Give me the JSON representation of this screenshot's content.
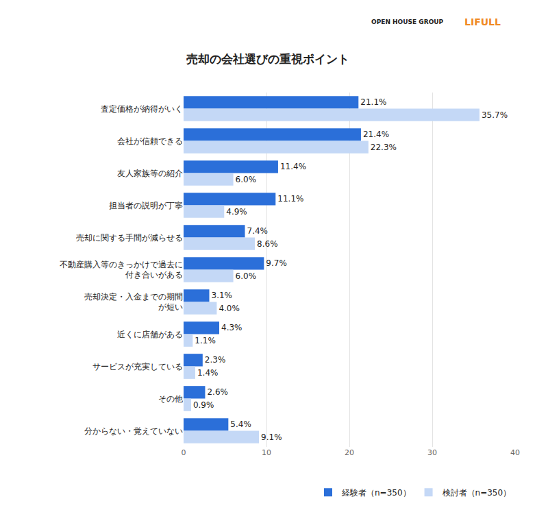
{
  "header": {
    "logos": [
      "OPEN HOUSE GROUP",
      "LIFULL"
    ]
  },
  "chart_data": {
    "type": "bar",
    "orientation": "horizontal",
    "title": "売却の会社選びの重視ポイント",
    "categories": [
      "査定価格が納得がいく",
      "会社が信頼できる",
      "友人家族等の紹介",
      "担当者の説明が丁寧",
      "売却に関する手間が減らせる",
      "不動産購入等のきっかけで過去に\n付き合いがある",
      "売却決定・入金までの期間\nが短い",
      "近くに店舗がある",
      "サービスが充実している",
      "その他",
      "分からない・覚えていない"
    ],
    "series": [
      {
        "name": "経験者（n=350）",
        "color": "#2b6fd9",
        "values": [
          21.1,
          21.4,
          11.4,
          11.1,
          7.4,
          9.7,
          3.1,
          4.3,
          2.3,
          2.6,
          5.4
        ],
        "value_labels": [
          "21.1%",
          "21.4%",
          "11.4%",
          "11.1%",
          "7.4%",
          "9.7%",
          "3.1%",
          "4.3%",
          "2.3%",
          "2.6%",
          "5.4%"
        ]
      },
      {
        "name": "検討者（n=350）",
        "color": "#c4d8f6",
        "values": [
          35.7,
          22.3,
          6.0,
          4.9,
          8.6,
          6.0,
          4.0,
          1.1,
          1.4,
          0.9,
          9.1
        ],
        "value_labels": [
          "35.7%",
          "22.3%",
          "6.0%",
          "4.9%",
          "8.6%",
          "6.0%",
          "4.0%",
          "1.1%",
          "1.4%",
          "0.9%",
          "9.1%"
        ]
      }
    ],
    "xlim": [
      0,
      40
    ],
    "xticks": [
      0,
      10,
      20,
      30,
      40
    ],
    "grid": true,
    "data_labels": true,
    "legend": "bottom right"
  }
}
